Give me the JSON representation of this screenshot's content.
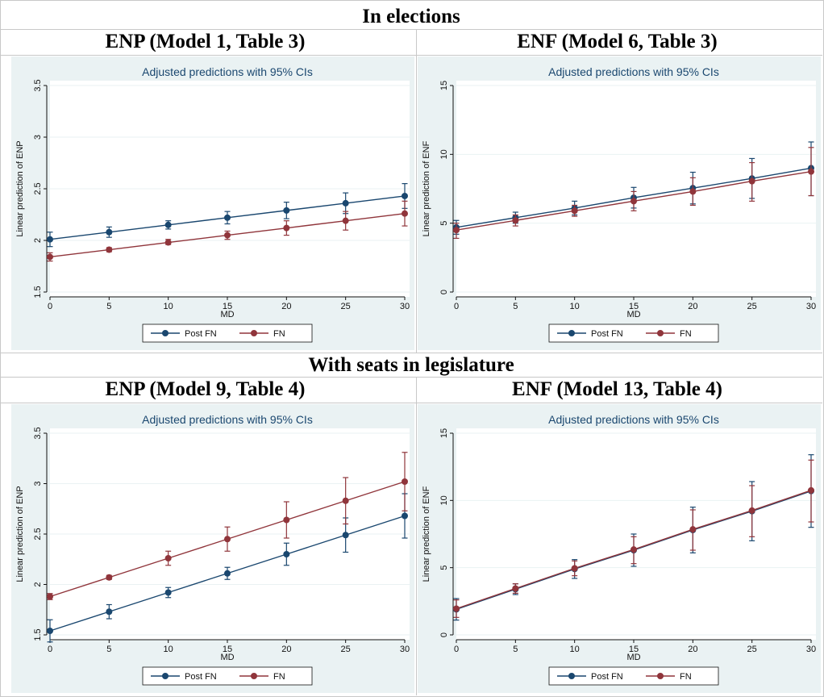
{
  "sections": [
    {
      "title": "In elections",
      "panels": [
        {
          "heading": "ENP (Model 1, Table 3)",
          "chart_data": {
            "type": "line",
            "title": "Adjusted predictions with 95% CIs",
            "xlabel": "MD",
            "ylabel": "Linear prediction of ENP",
            "x": [
              0,
              5,
              10,
              15,
              20,
              25,
              30
            ],
            "xlim": [
              0,
              30
            ],
            "ylim": [
              1.5,
              3.5
            ],
            "xticks": [
              0,
              5,
              10,
              15,
              20,
              25,
              30
            ],
            "yticks": [
              1.5,
              2,
              2.5,
              3,
              3.5
            ],
            "ytick_labels": [
              "1.5",
              "2",
              "2.5",
              "3",
              "3.5"
            ],
            "legend_position": "bottom",
            "grid": "horizontal",
            "series": [
              {
                "name": "Post FN",
                "color": "#1a476f",
                "values": [
                  2.01,
                  2.08,
                  2.15,
                  2.22,
                  2.29,
                  2.36,
                  2.43
                ],
                "lower": [
                  1.94,
                  2.03,
                  2.11,
                  2.16,
                  2.21,
                  2.26,
                  2.31
                ],
                "upper": [
                  2.08,
                  2.13,
                  2.19,
                  2.28,
                  2.37,
                  2.46,
                  2.55
                ]
              },
              {
                "name": "FN",
                "color": "#90353b",
                "values": [
                  1.84,
                  1.91,
                  1.98,
                  2.05,
                  2.12,
                  2.19,
                  2.26
                ],
                "lower": [
                  1.8,
                  1.89,
                  1.96,
                  2.01,
                  2.05,
                  2.1,
                  2.14
                ],
                "upper": [
                  1.88,
                  1.93,
                  2.01,
                  2.09,
                  2.19,
                  2.28,
                  2.38
                ]
              }
            ]
          }
        },
        {
          "heading": "ENF (Model 6, Table 3)",
          "chart_data": {
            "type": "line",
            "title": "Adjusted predictions with 95% CIs",
            "xlabel": "MD",
            "ylabel": "Linear prediction of ENF",
            "x": [
              0,
              5,
              10,
              15,
              20,
              25,
              30
            ],
            "xlim": [
              0,
              30
            ],
            "ylim": [
              0,
              15
            ],
            "xticks": [
              0,
              5,
              10,
              15,
              20,
              25,
              30
            ],
            "yticks": [
              0,
              5,
              10,
              15
            ],
            "ytick_labels": [
              "0",
              "5",
              "10",
              "15"
            ],
            "legend_position": "bottom",
            "grid": "horizontal",
            "series": [
              {
                "name": "Post FN",
                "color": "#1a476f",
                "values": [
                  4.7,
                  5.4,
                  6.1,
                  6.85,
                  7.55,
                  8.25,
                  9.0
                ],
                "lower": [
                  4.2,
                  5.0,
                  5.6,
                  6.1,
                  6.4,
                  6.8,
                  7.0
                ],
                "upper": [
                  5.2,
                  5.8,
                  6.6,
                  7.6,
                  8.7,
                  9.7,
                  10.9
                ]
              },
              {
                "name": "FN",
                "color": "#90353b",
                "values": [
                  4.5,
                  5.2,
                  5.9,
                  6.6,
                  7.3,
                  8.05,
                  8.75
                ],
                "lower": [
                  3.9,
                  4.8,
                  5.5,
                  5.9,
                  6.3,
                  6.6,
                  7.0
                ],
                "upper": [
                  5.0,
                  5.6,
                  6.3,
                  7.3,
                  8.3,
                  9.4,
                  10.5
                ]
              }
            ]
          }
        }
      ]
    },
    {
      "title": "With seats in legislature",
      "panels": [
        {
          "heading": "ENP (Model 9, Table 4)",
          "chart_data": {
            "type": "line",
            "title": "Adjusted predictions with 95% CIs",
            "xlabel": "MD",
            "ylabel": "Linear prediction of ENP",
            "x": [
              0,
              5,
              10,
              15,
              20,
              25,
              30
            ],
            "xlim": [
              0,
              30
            ],
            "ylim": [
              1.5,
              3.5
            ],
            "xticks": [
              0,
              5,
              10,
              15,
              20,
              25,
              30
            ],
            "yticks": [
              1.5,
              2,
              2.5,
              3,
              3.5
            ],
            "ytick_labels": [
              "1.5",
              "2",
              "2.5",
              "3",
              "3.5"
            ],
            "legend_position": "bottom",
            "grid": "horizontal",
            "series": [
              {
                "name": "Post FN",
                "color": "#1a476f",
                "values": [
                  1.54,
                  1.73,
                  1.92,
                  2.11,
                  2.3,
                  2.49,
                  2.68
                ],
                "lower": [
                  1.43,
                  1.66,
                  1.87,
                  2.05,
                  2.19,
                  2.32,
                  2.46
                ],
                "upper": [
                  1.65,
                  1.8,
                  1.97,
                  2.17,
                  2.41,
                  2.66,
                  2.9
                ]
              },
              {
                "name": "FN",
                "color": "#90353b",
                "values": [
                  1.88,
                  2.07,
                  2.26,
                  2.45,
                  2.64,
                  2.83,
                  3.02
                ],
                "lower": [
                  1.85,
                  2.05,
                  2.19,
                  2.33,
                  2.46,
                  2.6,
                  2.73
                ],
                "upper": [
                  1.91,
                  2.09,
                  2.33,
                  2.57,
                  2.82,
                  3.06,
                  3.31
                ]
              }
            ]
          }
        },
        {
          "heading": "ENF (Model 13, Table 4)",
          "chart_data": {
            "type": "line",
            "title": "Adjusted predictions with 95% CIs",
            "xlabel": "MD",
            "ylabel": "Linear prediction of ENF",
            "x": [
              0,
              5,
              10,
              15,
              20,
              25,
              30
            ],
            "xlim": [
              0,
              30
            ],
            "ylim": [
              0,
              15
            ],
            "xticks": [
              0,
              5,
              10,
              15,
              20,
              25,
              30
            ],
            "yticks": [
              0,
              5,
              10,
              15
            ],
            "ytick_labels": [
              "0",
              "5",
              "10",
              "15"
            ],
            "legend_position": "bottom",
            "grid": "horizontal",
            "series": [
              {
                "name": "Post FN",
                "color": "#1a476f",
                "values": [
                  1.9,
                  3.4,
                  4.9,
                  6.3,
                  7.8,
                  9.2,
                  10.7
                ],
                "lower": [
                  1.1,
                  3.0,
                  4.2,
                  5.1,
                  6.1,
                  7.0,
                  8.0
                ],
                "upper": [
                  2.7,
                  3.8,
                  5.6,
                  7.5,
                  9.5,
                  11.4,
                  13.4
                ]
              },
              {
                "name": "FN",
                "color": "#90353b",
                "values": [
                  1.95,
                  3.45,
                  4.95,
                  6.35,
                  7.85,
                  9.25,
                  10.75
                ],
                "lower": [
                  1.3,
                  3.1,
                  4.4,
                  5.3,
                  6.3,
                  7.3,
                  8.4
                ],
                "upper": [
                  2.6,
                  3.8,
                  5.5,
                  7.3,
                  9.3,
                  11.1,
                  13.0
                ]
              }
            ]
          }
        }
      ]
    }
  ]
}
